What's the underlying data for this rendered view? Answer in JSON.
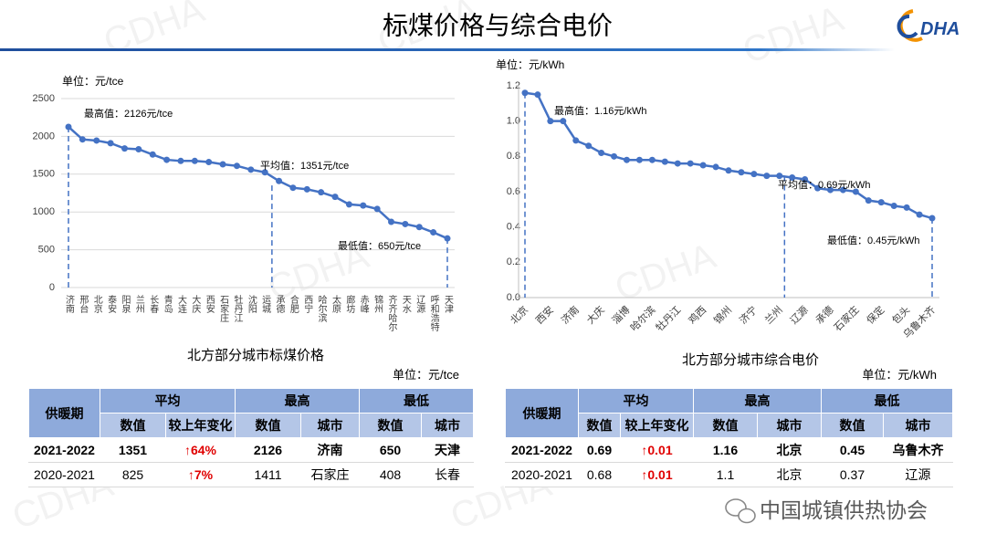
{
  "header": {
    "title": "标煤价格与综合电价",
    "logo": "DHA",
    "watermark": "CDHA"
  },
  "footer": "中国城镇供热协会",
  "chart_data": [
    {
      "type": "line",
      "unit": "单位：元/tce",
      "title": "北方部分城市标煤价格",
      "color": "#4472c4",
      "grid": true,
      "categories": [
        "济南",
        "邢台",
        "北京",
        "泰安",
        "阳泉",
        "兰州",
        "长春",
        "青岛",
        "大连",
        "大庆",
        "西安",
        "石家庄",
        "牡丹江",
        "沈阳",
        "运城",
        "承德",
        "合肥",
        "西宁",
        "哈尔滨",
        "太原",
        "廊坊",
        "赤峰",
        "锦州",
        "齐齐哈尔",
        "天水",
        "辽源",
        "呼和浩特",
        "天津"
      ],
      "values": [
        2126,
        1960,
        1945,
        1910,
        1840,
        1830,
        1760,
        1690,
        1675,
        1675,
        1660,
        1630,
        1610,
        1560,
        1525,
        1410,
        1320,
        1300,
        1260,
        1200,
        1100,
        1085,
        1040,
        870,
        840,
        800,
        730,
        650
      ],
      "average": 1351,
      "annotations": [
        "最高值：2126元/tce",
        "平均值：1351元/tce",
        "最低值：650元/tce"
      ],
      "ylim": [
        0,
        2500
      ],
      "yticks": [
        0,
        500,
        1000,
        1500,
        2000,
        2500
      ]
    },
    {
      "type": "line",
      "unit": "单位：元/kWh",
      "title": "北方部分城市综合电价",
      "color": "#4472c4",
      "grid": false,
      "categories": [
        "北京",
        null,
        "西安",
        null,
        "济南",
        null,
        "大庆",
        null,
        "淄博",
        null,
        "哈尔滨",
        null,
        "牡丹江",
        null,
        "鸡西",
        null,
        "锦州",
        null,
        "济宁",
        null,
        "兰州",
        null,
        "辽源",
        null,
        "承德",
        null,
        "石家庄",
        null,
        "保定",
        null,
        "包头",
        null,
        "乌鲁木齐"
      ],
      "values": [
        1.16,
        1.15,
        1.0,
        1.0,
        0.89,
        0.86,
        0.82,
        0.8,
        0.78,
        0.78,
        0.78,
        0.77,
        0.76,
        0.76,
        0.75,
        0.74,
        0.72,
        0.71,
        0.7,
        0.69,
        0.69,
        0.68,
        0.67,
        0.62,
        0.61,
        0.61,
        0.6,
        0.55,
        0.54,
        0.52,
        0.51,
        0.47,
        0.45
      ],
      "average": 0.69,
      "annotations": [
        "最高值：1.16元/kWh",
        "平均值：0.69元/kWh",
        "最低值：0.45元/kWh"
      ],
      "ylim": [
        0,
        1.2
      ],
      "yticks": [
        {
          "value": 0,
          "label": "0.0"
        },
        0.2,
        0.4,
        0.6,
        0.8,
        {
          "value": 1,
          "label": "1.0"
        },
        1.2
      ]
    }
  ],
  "tables": [
    {
      "unit": "单位：元/tce",
      "groups": [
        "供暖期",
        "平均",
        "最高",
        "最低"
      ],
      "subheaders": [
        "数值",
        "较上年变化",
        "数值",
        "城市",
        "数值",
        "城市"
      ],
      "rows": [
        [
          "2021-2022",
          "1351",
          "↑64%",
          "2126",
          "济南",
          "650",
          "天津"
        ],
        [
          "2020-2021",
          "825",
          "↑7%",
          "1411",
          "石家庄",
          "408",
          "长春"
        ]
      ]
    },
    {
      "unit": "单位：元/kWh",
      "groups": [
        "供暖期",
        "平均",
        "最高",
        "最低"
      ],
      "subheaders": [
        "数值",
        "较上年变化",
        "数值",
        "城市",
        "数值",
        "城市"
      ],
      "rows": [
        [
          "2021-2022",
          "0.69",
          "↑0.01",
          "1.16",
          "北京",
          "0.45",
          "乌鲁木齐"
        ],
        [
          "2020-2021",
          "0.68",
          "↑0.01",
          "1.1",
          "北京",
          "0.37",
          "辽源"
        ]
      ]
    }
  ]
}
